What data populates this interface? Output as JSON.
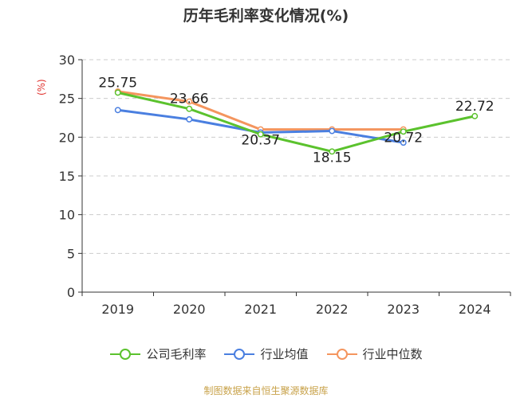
{
  "chart_data": {
    "type": "line",
    "title": "历年毛利率变化情况(%)",
    "ylabel": "(%)",
    "categories": [
      "2019",
      "2020",
      "2021",
      "2022",
      "2023",
      "2024"
    ],
    "ylim": [
      0,
      30
    ],
    "yticks": [
      0,
      5,
      10,
      15,
      20,
      25,
      30
    ],
    "grid": true,
    "legend_position": "bottom",
    "series": [
      {
        "name": "公司毛利率",
        "color": "#5bc22d",
        "values": [
          25.75,
          23.66,
          20.37,
          18.15,
          20.72,
          22.72
        ],
        "labels": [
          "25.75",
          "23.66",
          "20.37",
          "18.15",
          "20.72",
          "22.72"
        ]
      },
      {
        "name": "行业均值",
        "color": "#4a7fe0",
        "values": [
          23.5,
          22.3,
          20.6,
          20.8,
          19.3,
          null
        ]
      },
      {
        "name": "行业中位数",
        "color": "#f4955e",
        "values": [
          25.9,
          24.6,
          21.0,
          21.0,
          21.0,
          null
        ]
      }
    ]
  },
  "source": "制图数据来自恒生聚源数据库"
}
